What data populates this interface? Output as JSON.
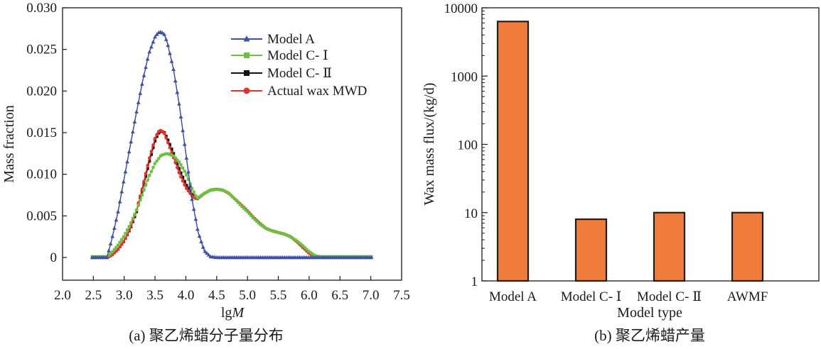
{
  "chart_data": [
    {
      "id": "a",
      "type": "line",
      "caption": "(a) 聚乙烯蜡分子量分布",
      "xlabel_prefix": "lg",
      "xlabel_italic": "M",
      "ylabel": "Mass fraction",
      "xlim": [
        2.0,
        7.5
      ],
      "ylim": [
        -0.0025,
        0.03
      ],
      "xticks": [
        "2.0",
        "2.5",
        "3.0",
        "3.5",
        "4.0",
        "4.5",
        "5.0",
        "5.5",
        "6.0",
        "6.5",
        "7.0",
        "7.5"
      ],
      "yticks": [
        "0",
        "0.005",
        "0.010",
        "0.015",
        "0.020",
        "0.025",
        "0.030"
      ],
      "grid": false,
      "legend_position": "top-right",
      "series": [
        {
          "name": "Model A",
          "color": "#3f51a3",
          "marker": "triangle",
          "x": [
            2.48,
            2.6,
            2.72,
            2.8,
            2.9,
            3.0,
            3.1,
            3.2,
            3.3,
            3.4,
            3.5,
            3.55,
            3.6,
            3.65,
            3.7,
            3.8,
            3.9,
            4.0,
            4.1,
            4.2,
            4.3,
            4.4,
            4.5,
            4.7,
            5.0,
            5.5,
            6.0,
            6.5,
            7.03
          ],
          "y": [
            0.0,
            0.0,
            0.0,
            0.0022,
            0.0055,
            0.0095,
            0.0135,
            0.0175,
            0.0212,
            0.0245,
            0.0265,
            0.027,
            0.0271,
            0.0268,
            0.0258,
            0.0226,
            0.018,
            0.0125,
            0.007,
            0.003,
            0.0008,
            0.0001,
            0.0,
            0.0,
            0.0,
            0.0,
            0.0,
            0.0,
            0.0
          ]
        },
        {
          "name": "Model C- Ⅰ",
          "color": "#6cbf3f",
          "marker": "square",
          "x": [
            2.48,
            2.6,
            2.72,
            2.8,
            2.9,
            3.0,
            3.1,
            3.2,
            3.3,
            3.4,
            3.5,
            3.6,
            3.7,
            3.8,
            3.9,
            4.0,
            4.1,
            4.18,
            4.3,
            4.4,
            4.5,
            4.6,
            4.7,
            4.8,
            4.9,
            5.0,
            5.1,
            5.2,
            5.3,
            5.4,
            5.5,
            5.6,
            5.7,
            5.8,
            5.9,
            6.0,
            6.1,
            6.18,
            6.3,
            6.5,
            6.8,
            7.03
          ],
          "y": [
            0.0001,
            0.0001,
            0.0001,
            0.0006,
            0.0015,
            0.0026,
            0.004,
            0.0057,
            0.0077,
            0.0097,
            0.0113,
            0.0123,
            0.0125,
            0.0122,
            0.0114,
            0.0101,
            0.0083,
            0.0071,
            0.0077,
            0.0081,
            0.0082,
            0.0081,
            0.0077,
            0.007,
            0.0062,
            0.0055,
            0.0047,
            0.004,
            0.0035,
            0.0032,
            0.003,
            0.0028,
            0.0025,
            0.002,
            0.0014,
            0.0007,
            0.0002,
            0.0001,
            0.0001,
            0.0001,
            0.0001,
            0.0001
          ]
        },
        {
          "name": "Model C- Ⅱ",
          "color": "#111111",
          "marker": "square",
          "x": [
            2.72,
            2.8,
            2.9,
            3.0,
            3.1,
            3.2,
            3.3,
            3.4,
            3.5,
            3.55,
            3.6,
            3.65,
            3.7,
            3.8,
            3.9,
            4.0,
            4.1,
            4.18
          ],
          "y": [
            0.0,
            0.0003,
            0.001,
            0.002,
            0.0035,
            0.0055,
            0.0082,
            0.0113,
            0.014,
            0.0149,
            0.0152,
            0.015,
            0.0143,
            0.0125,
            0.0105,
            0.0088,
            0.0076,
            0.0071
          ]
        },
        {
          "name": "Actual wax MWD",
          "color": "#e8302a",
          "marker": "circle",
          "x": [
            2.72,
            2.8,
            2.9,
            3.0,
            3.1,
            3.2,
            3.3,
            3.4,
            3.5,
            3.55,
            3.6,
            3.65,
            3.7,
            3.8,
            3.9,
            4.0,
            4.1,
            4.18,
            4.3,
            4.4,
            4.5,
            4.6,
            4.7,
            4.8,
            4.9,
            5.0,
            5.1,
            5.2,
            5.3,
            5.4,
            5.5,
            5.6,
            5.7,
            5.8,
            5.9,
            6.0,
            6.1,
            6.18
          ],
          "y": [
            0.0,
            0.0003,
            0.001,
            0.002,
            0.0036,
            0.0057,
            0.0085,
            0.0117,
            0.0143,
            0.0151,
            0.0153,
            0.0149,
            0.014,
            0.012,
            0.01,
            0.0084,
            0.0074,
            0.007,
            0.0077,
            0.0081,
            0.0082,
            0.0081,
            0.0077,
            0.007,
            0.0063,
            0.0056,
            0.0048,
            0.0041,
            0.0035,
            0.0032,
            0.003,
            0.0028,
            0.0025,
            0.0019,
            0.0012,
            0.0005,
            0.0001,
            0.0
          ]
        }
      ]
    },
    {
      "id": "b",
      "type": "bar",
      "caption": "(b) 聚乙烯蜡产量",
      "xlabel": "Model type",
      "ylabel": "Wax mass flux/(kg/d)",
      "yscale": "log",
      "ylim": [
        1,
        10000
      ],
      "yticks": [
        "1",
        "10",
        "100",
        "1000",
        "10000"
      ],
      "categories": [
        "Model A",
        "Model C- Ⅰ",
        "Model C- Ⅱ",
        "AWMF"
      ],
      "values": [
        6300,
        8,
        10,
        10
      ],
      "bar_color": "#ef7c3a",
      "bar_edge_color": "#2a1a12",
      "grid": false
    }
  ]
}
